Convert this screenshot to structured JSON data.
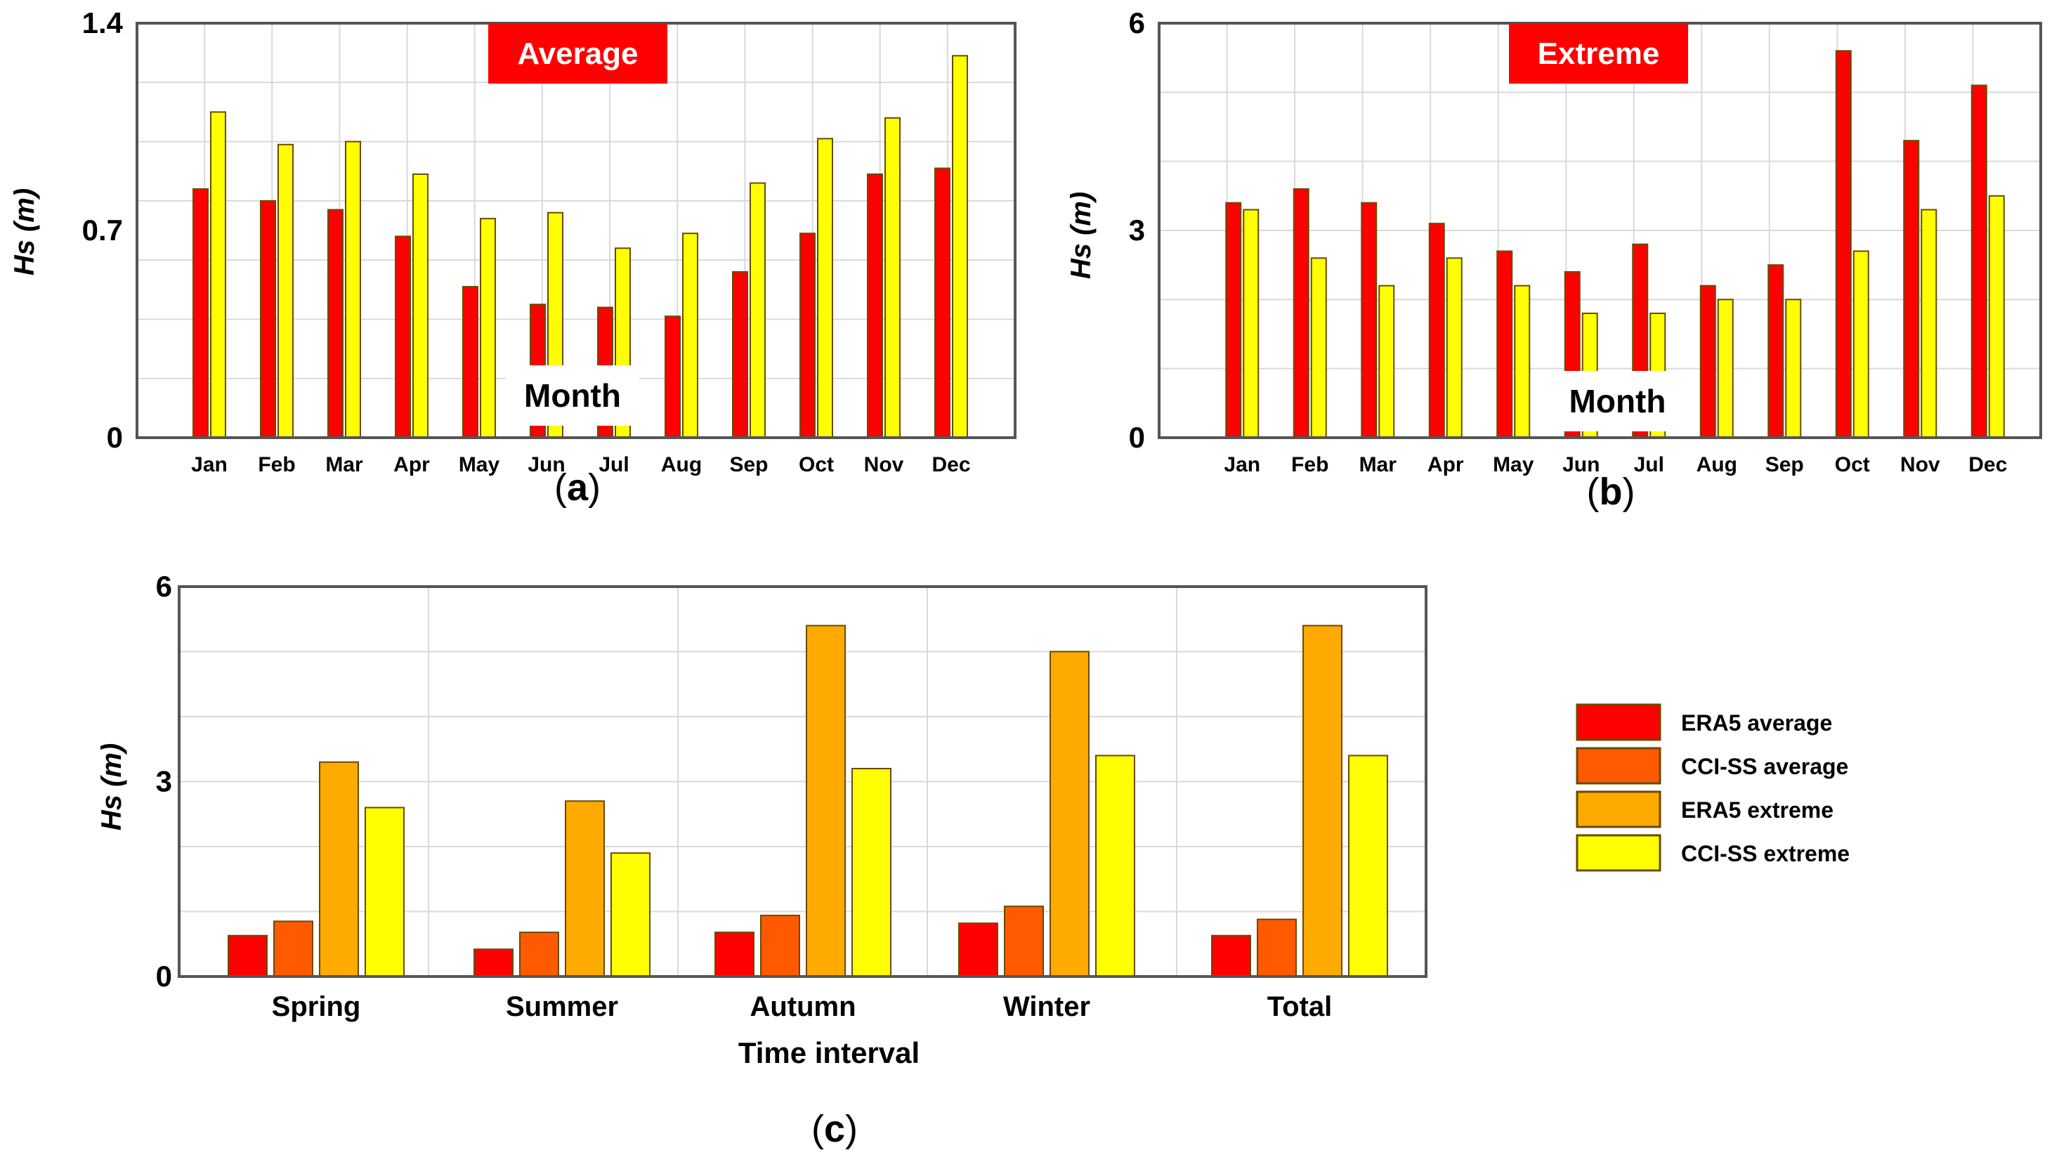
{
  "colors": {
    "era5_average": "#ff0000",
    "cci_ss_average": "#ff5a00",
    "era5_extreme": "#ffaa00",
    "cci_ss_extreme": "#ffff00",
    "banner": "#ff0000"
  },
  "chart_data": [
    {
      "id": "a",
      "type": "bar",
      "panel_label": "a",
      "banner": "Average",
      "xlabel": "Month",
      "ylabel": "Hs (m)",
      "ylim": [
        0,
        1.4
      ],
      "yticks": [
        0,
        0.7,
        1.4
      ],
      "ytick_labels": [
        "0",
        "0.7",
        "1.4"
      ],
      "categories": [
        "Jan",
        "Feb",
        "Mar",
        "Apr",
        "May",
        "Jun",
        "Jul",
        "Aug",
        "Sep",
        "Oct",
        "Nov",
        "Dec"
      ],
      "series": [
        {
          "name": "ERA5 average",
          "color_key": "era5_average",
          "values": [
            0.84,
            0.8,
            0.77,
            0.68,
            0.51,
            0.45,
            0.44,
            0.41,
            0.56,
            0.69,
            0.89,
            0.91
          ]
        },
        {
          "name": "CCI-SS average",
          "color_key": "cci_ss_extreme",
          "values": [
            1.1,
            0.99,
            1.0,
            0.89,
            0.74,
            0.76,
            0.64,
            0.69,
            0.86,
            1.01,
            1.08,
            1.29
          ]
        }
      ]
    },
    {
      "id": "b",
      "type": "bar",
      "panel_label": "b",
      "banner": "Extreme",
      "xlabel": "Month",
      "ylabel": "Hs (m)",
      "ylim": [
        0,
        6
      ],
      "yticks": [
        0,
        3,
        6
      ],
      "ytick_labels": [
        "0",
        "3",
        "6"
      ],
      "categories": [
        "Jan",
        "Feb",
        "Mar",
        "Apr",
        "May",
        "Jun",
        "Jul",
        "Aug",
        "Sep",
        "Oct",
        "Nov",
        "Dec"
      ],
      "series": [
        {
          "name": "ERA5 extreme",
          "color_key": "era5_average",
          "values": [
            3.4,
            3.6,
            3.4,
            3.1,
            2.7,
            2.4,
            2.8,
            2.2,
            2.5,
            5.6,
            4.3,
            5.1
          ]
        },
        {
          "name": "CCI-SS extreme",
          "color_key": "cci_ss_extreme",
          "values": [
            3.3,
            2.6,
            2.2,
            2.6,
            2.2,
            1.8,
            1.8,
            2.0,
            2.0,
            2.7,
            3.3,
            3.5
          ]
        }
      ]
    },
    {
      "id": "c",
      "type": "bar",
      "panel_label": "c",
      "xlabel": "Time interval",
      "ylabel": "Hs (m)",
      "ylim": [
        0,
        6
      ],
      "yticks": [
        0,
        3,
        6
      ],
      "ytick_labels": [
        "0",
        "3",
        "6"
      ],
      "categories": [
        "Spring",
        "Summer",
        "Autumn",
        "Winter",
        "Total"
      ],
      "series": [
        {
          "name": "ERA5 average",
          "color_key": "era5_average",
          "values": [
            0.63,
            0.42,
            0.68,
            0.82,
            0.63
          ]
        },
        {
          "name": "CCI-SS average",
          "color_key": "cci_ss_average",
          "values": [
            0.85,
            0.68,
            0.94,
            1.08,
            0.88
          ]
        },
        {
          "name": "ERA5 extreme",
          "color_key": "era5_extreme",
          "values": [
            3.3,
            2.7,
            5.4,
            5.0,
            5.4
          ]
        },
        {
          "name": "CCI-SS extreme",
          "color_key": "cci_ss_extreme",
          "values": [
            2.6,
            1.9,
            3.2,
            3.4,
            3.4
          ]
        }
      ]
    }
  ],
  "legend": {
    "position": "right",
    "items": [
      {
        "label": "ERA5 average",
        "color_key": "era5_average"
      },
      {
        "label": "CCI-SS average",
        "color_key": "cci_ss_average"
      },
      {
        "label": "ERA5 extreme",
        "color_key": "era5_extreme"
      },
      {
        "label": "CCI-SS extreme",
        "color_key": "cci_ss_extreme"
      }
    ]
  }
}
